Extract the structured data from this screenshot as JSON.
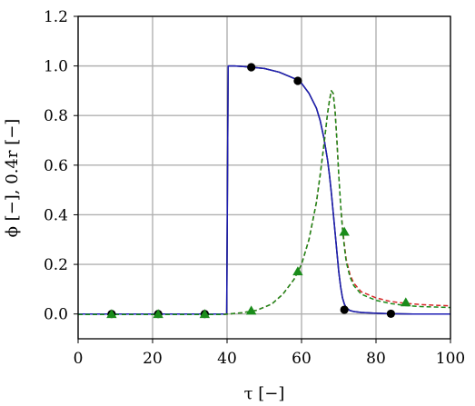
{
  "chart_data": {
    "type": "line",
    "xlabel": "τ [−]",
    "ylabel": "ϕ [−], 0.4r [−]",
    "xlim": [
      0,
      100
    ],
    "ylim": [
      -0.1,
      1.2
    ],
    "xticks": [
      "0",
      "20",
      "40",
      "60",
      "80",
      "100"
    ],
    "xtick_values": [
      0,
      20,
      40,
      60,
      80,
      100
    ],
    "yticks": [
      "0.0",
      "0.2",
      "0.4",
      "0.6",
      "0.8",
      "1.0",
      "1.2"
    ],
    "ytick_values": [
      0.0,
      0.2,
      0.4,
      0.6,
      0.8,
      1.0,
      1.2
    ],
    "grid": true,
    "series": [
      {
        "color": "#000000",
        "style": "solid",
        "marker": "circle",
        "x": [
          0,
          39.9,
          40.3,
          42,
          44,
          46.5,
          50,
          54,
          58,
          60,
          62,
          64,
          65,
          66,
          67,
          67.5,
          68,
          68.5,
          69,
          69.5,
          70,
          70.5,
          71,
          71.5,
          72,
          73,
          74,
          76,
          80,
          84,
          90,
          100
        ],
        "y": [
          0.0,
          0.0,
          1.0,
          1.0,
          0.998,
          0.995,
          0.99,
          0.975,
          0.95,
          0.93,
          0.89,
          0.83,
          0.78,
          0.71,
          0.62,
          0.56,
          0.49,
          0.41,
          0.33,
          0.25,
          0.17,
          0.11,
          0.065,
          0.04,
          0.025,
          0.014,
          0.01,
          0.006,
          0.003,
          0.001,
          0.0,
          0.0
        ],
        "marker_x": [
          9,
          21.5,
          34,
          46.5,
          59,
          71.5,
          84
        ],
        "marker_y": [
          0.0,
          0.0,
          0.0,
          0.995,
          0.94,
          0.017,
          0.001
        ]
      },
      {
        "color": "#1f1fb4",
        "style": "solid",
        "marker": "none",
        "x": [
          0,
          39.9,
          40.3,
          42,
          44,
          46.5,
          50,
          54,
          58,
          60,
          62,
          64,
          65,
          66,
          67,
          67.5,
          68,
          68.5,
          69,
          69.5,
          70,
          70.5,
          71,
          71.5,
          72,
          73,
          74,
          76,
          80,
          84,
          90,
          100
        ],
        "y": [
          0.0,
          0.0,
          1.0,
          1.0,
          0.998,
          0.995,
          0.99,
          0.975,
          0.95,
          0.93,
          0.89,
          0.83,
          0.78,
          0.71,
          0.62,
          0.56,
          0.49,
          0.41,
          0.33,
          0.25,
          0.17,
          0.11,
          0.065,
          0.04,
          0.025,
          0.014,
          0.01,
          0.006,
          0.003,
          0.001,
          0.0,
          0.0
        ]
      },
      {
        "color": "#d62728",
        "style": "dashed",
        "marker": "none",
        "x": [
          0,
          39,
          40.3,
          44,
          48,
          52,
          55,
          58,
          60,
          62,
          64,
          65,
          66,
          67,
          67.5,
          68,
          68.5,
          69,
          69.5,
          70,
          70.5,
          71,
          71.5,
          72,
          73,
          74,
          76,
          80,
          84,
          88,
          92,
          96,
          100
        ],
        "y": [
          -0.002,
          -0.002,
          0.0,
          0.005,
          0.015,
          0.04,
          0.08,
          0.14,
          0.2,
          0.3,
          0.45,
          0.56,
          0.68,
          0.81,
          0.86,
          0.9,
          0.89,
          0.82,
          0.7,
          0.56,
          0.44,
          0.35,
          0.28,
          0.22,
          0.16,
          0.125,
          0.09,
          0.065,
          0.05,
          0.043,
          0.038,
          0.035,
          0.033
        ]
      },
      {
        "color": "#1a8c1a",
        "style": "dashed",
        "marker": "triangle",
        "x": [
          0,
          39,
          40.3,
          44,
          48,
          52,
          55,
          58,
          60,
          62,
          64,
          65,
          66,
          67,
          67.5,
          68,
          68.5,
          69,
          69.5,
          70,
          70.5,
          71,
          71.5,
          72,
          73,
          74,
          76,
          80,
          84,
          88,
          92,
          96,
          100
        ],
        "y": [
          -0.002,
          -0.002,
          0.0,
          0.005,
          0.015,
          0.04,
          0.08,
          0.14,
          0.2,
          0.3,
          0.45,
          0.56,
          0.68,
          0.81,
          0.86,
          0.9,
          0.89,
          0.82,
          0.7,
          0.56,
          0.44,
          0.34,
          0.27,
          0.21,
          0.15,
          0.115,
          0.08,
          0.055,
          0.042,
          0.034,
          0.03,
          0.028,
          0.026
        ],
        "marker_x": [
          9,
          21.5,
          34,
          46.5,
          59,
          71.5,
          88
        ],
        "marker_y": [
          -0.002,
          -0.002,
          -0.002,
          0.012,
          0.17,
          0.33,
          0.045
        ]
      }
    ]
  }
}
